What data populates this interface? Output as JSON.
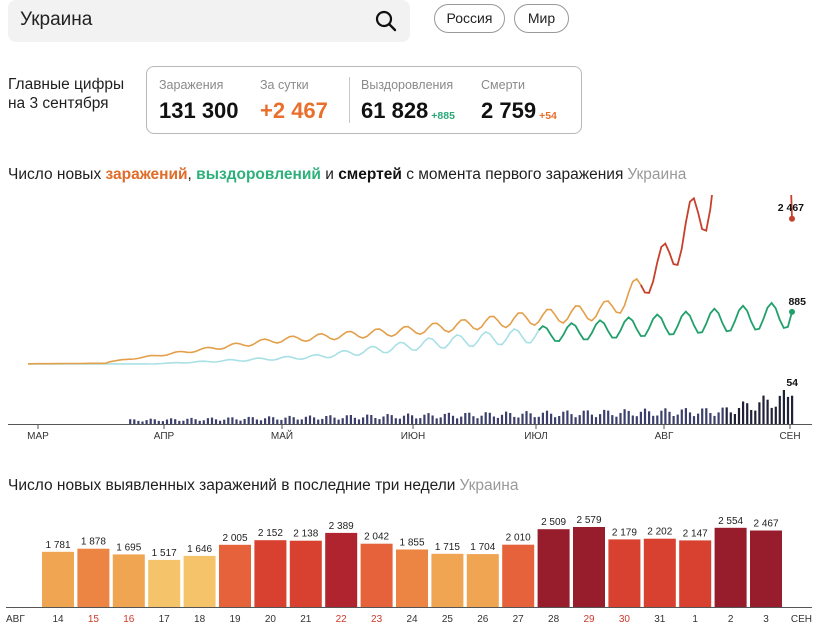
{
  "search": {
    "value": "Украина"
  },
  "region_buttons": [
    "Россия",
    "Мир"
  ],
  "headline": "Главные цифры на 3 сентября",
  "stats": {
    "infections": {
      "label": "Заражения",
      "value": "131 300"
    },
    "daily": {
      "label": "За сутки",
      "value": "+2 467"
    },
    "recovered": {
      "label": "Выздоровления",
      "value": "61 828",
      "delta": "+885"
    },
    "deaths": {
      "label": "Смерти",
      "value": "2 759",
      "delta": "+54"
    }
  },
  "chart1_title": {
    "prefix": "Число новых ",
    "infections": "заражений",
    "comma": ", ",
    "recoveries": "выздоровлений",
    "and": " и ",
    "deaths": "смертей",
    "suffix": " с момента первого заражения",
    "region": "Украина"
  },
  "chart2_title": {
    "text": "Число новых выявленных заражений в последние три недели",
    "region": "Украина"
  },
  "colors": {
    "infections_line": "#e39f4a",
    "infections_line_late": "#c7402c",
    "recoveries_line_early": "#a8e0e6",
    "recoveries_line_late": "#22a06b",
    "deaths_bar": "#3c3f6b"
  },
  "chart_data": [
    {
      "type": "line",
      "x_ticks": [
        "МАР",
        "АПР",
        "МАЙ",
        "ИЮН",
        "ИЮЛ",
        "АВГ",
        "СЕН"
      ],
      "series": [
        {
          "name": "заражений",
          "last_label": "2 467",
          "last_value": 2467
        },
        {
          "name": "выздоровлений",
          "last_label": "885",
          "last_value": 885
        },
        {
          "name": "смертей",
          "last_label": "54",
          "last_value": 54
        }
      ]
    },
    {
      "type": "bar",
      "categories": [
        "14",
        "15",
        "16",
        "17",
        "18",
        "19",
        "20",
        "21",
        "22",
        "23",
        "24",
        "25",
        "26",
        "27",
        "28",
        "29",
        "30",
        "31",
        "1",
        "2",
        "3"
      ],
      "weekend_categories": [
        "15",
        "16",
        "22",
        "23",
        "29",
        "30"
      ],
      "values": [
        1781,
        1878,
        1695,
        1517,
        1646,
        2005,
        2152,
        2138,
        2389,
        2042,
        1855,
        1715,
        1704,
        2010,
        2509,
        2579,
        2179,
        2202,
        2147,
        2554,
        2467
      ],
      "value_labels": [
        "1 781",
        "1 878",
        "1 695",
        "1 517",
        "1 646",
        "2 005",
        "2 152",
        "2 138",
        "2 389",
        "2 042",
        "1 855",
        "1 715",
        "1 704",
        "2 010",
        "2 509",
        "2 579",
        "2 179",
        "2 202",
        "2 147",
        "2 554",
        "2 467"
      ],
      "axis_start_label": "АВГ",
      "axis_end_label": "СЕН"
    }
  ]
}
